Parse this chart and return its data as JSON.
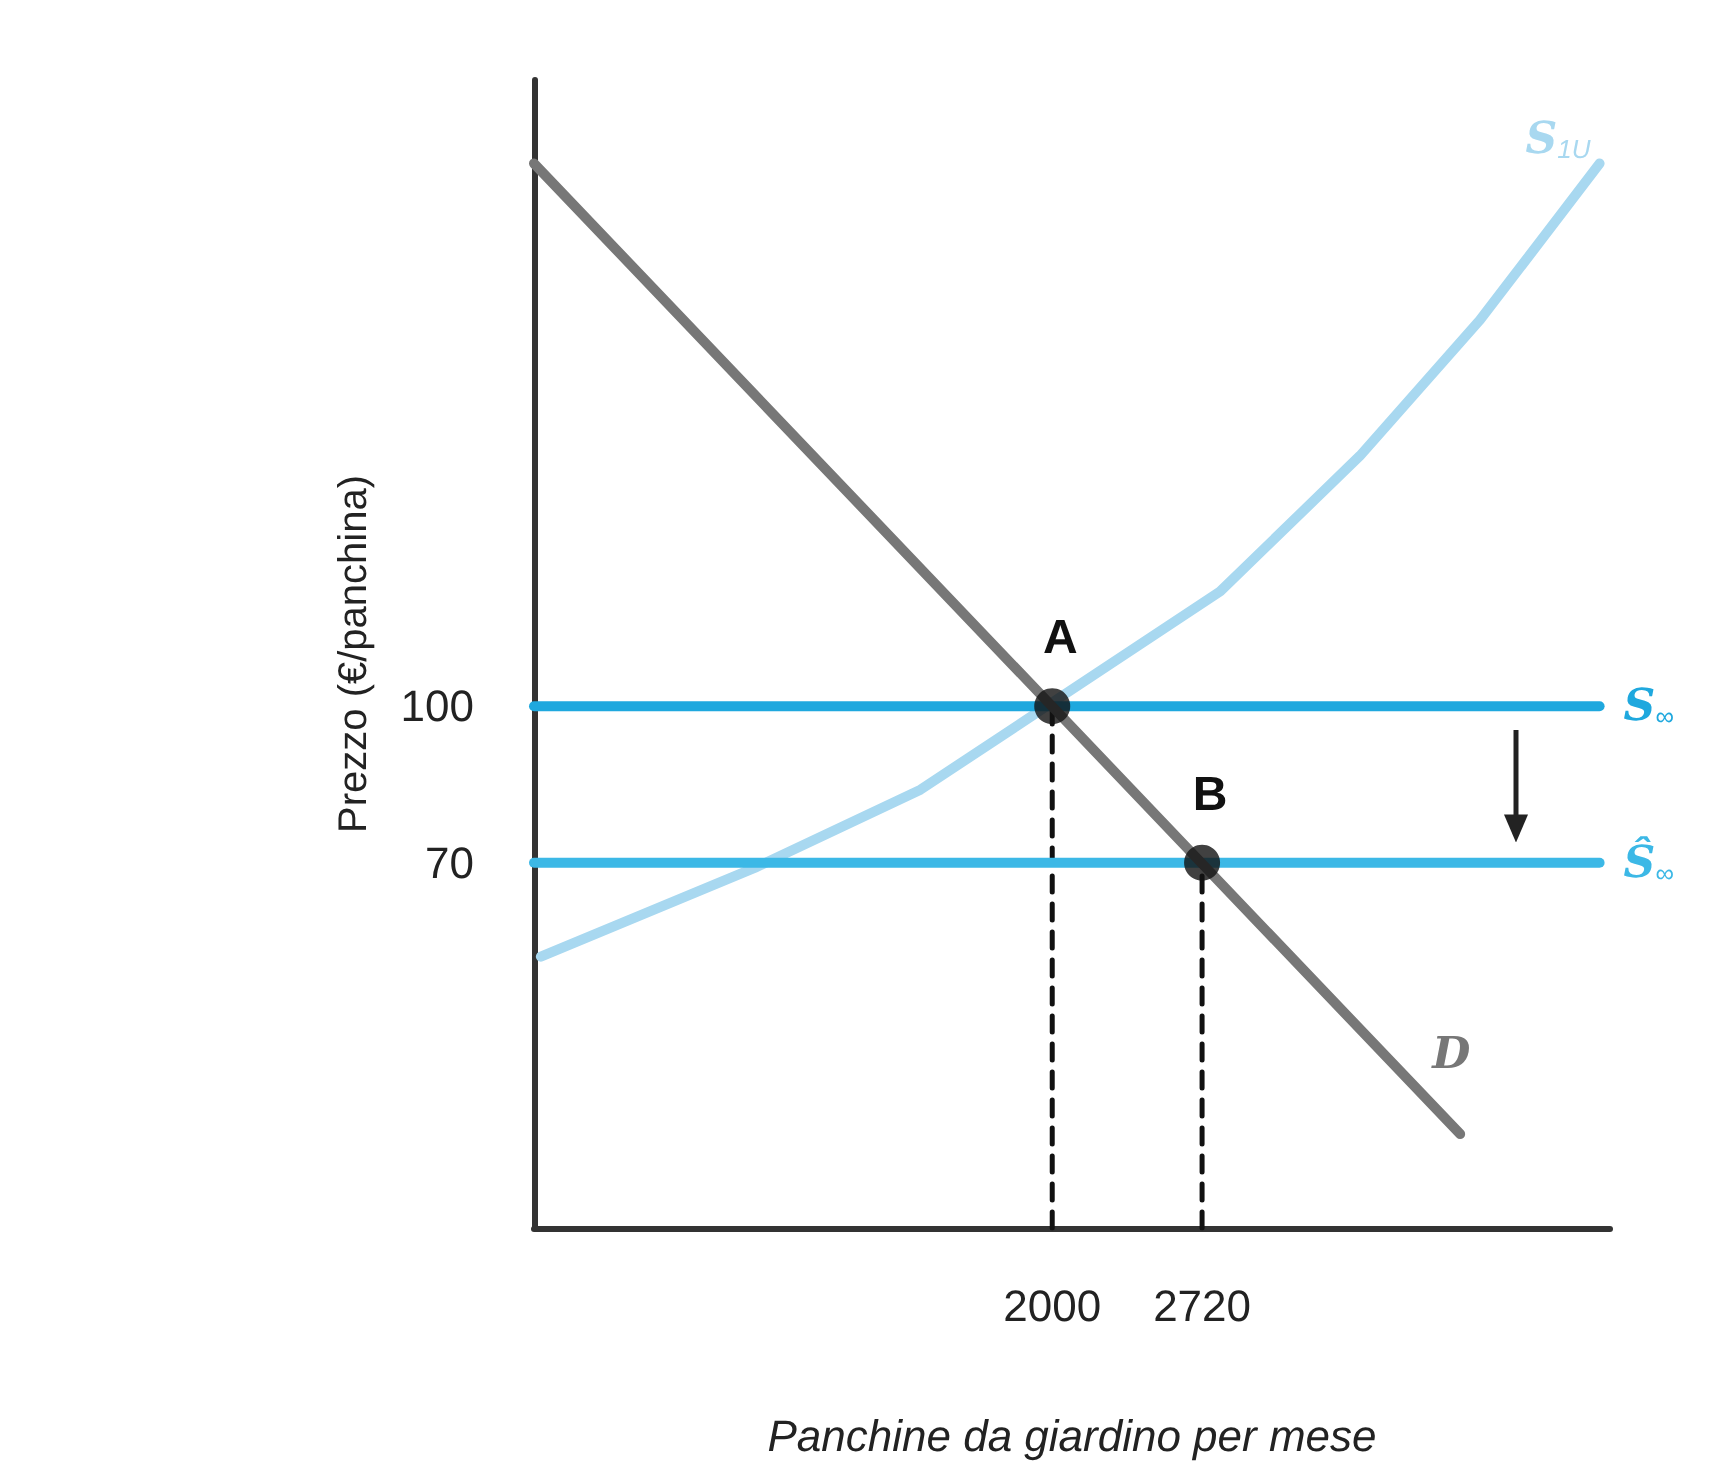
{
  "chart_data": {
    "type": "line",
    "xlabel": "Panchine da giardino per mese",
    "ylabel": "Prezzo (€/panchina)",
    "xlim": [
      -490,
      4680
    ],
    "ylim": [
      0,
      220
    ],
    "xticks": [
      2000,
      2720
    ],
    "yticks": [
      100,
      70
    ],
    "grid": false,
    "legend": false,
    "marker": "none",
    "line_style": "solid",
    "series": [
      {
        "name": "S$_{1U}$",
        "color": "#a8d8f0",
        "x": [
          -457,
          570,
          1367,
          2807,
          3479,
          4055,
          4343,
          4630
        ],
        "values": [
          52,
          69,
          84,
          122,
          148,
          174,
          189,
          204
        ]
      },
      {
        "name": "S$_{∞}$",
        "color": "#1fa8de",
        "x": [
          -490,
          4630
        ],
        "values": [
          100,
          100
        ]
      },
      {
        "name": "Ŝ$_{∞}$",
        "color": "#3cb8e6",
        "x": [
          -490,
          4630
        ],
        "values": [
          70,
          70
        ]
      },
      {
        "name": "D",
        "color": "#777777",
        "x": [
          -490,
          3960
        ],
        "values": [
          204,
          18
        ]
      },
      {
        "color": "#111111",
        "x": [
          2000,
          2000
        ],
        "values": [
          0,
          100
        ],
        "line_style": "dashed"
      },
      {
        "color": "#111111",
        "x": [
          2720,
          2720
        ],
        "values": [
          0,
          70
        ],
        "line_style": "dashed"
      },
      {
        "type": "scatter",
        "marker": "circle",
        "color": "#111111",
        "x": [
          2000,
          2720
        ],
        "values": [
          100,
          70
        ]
      }
    ],
    "annotations": [
      {
        "text": "A",
        "x": 2000,
        "y": 100
      },
      {
        "text": "B",
        "x": 2720,
        "y": 70
      }
    ]
  }
}
